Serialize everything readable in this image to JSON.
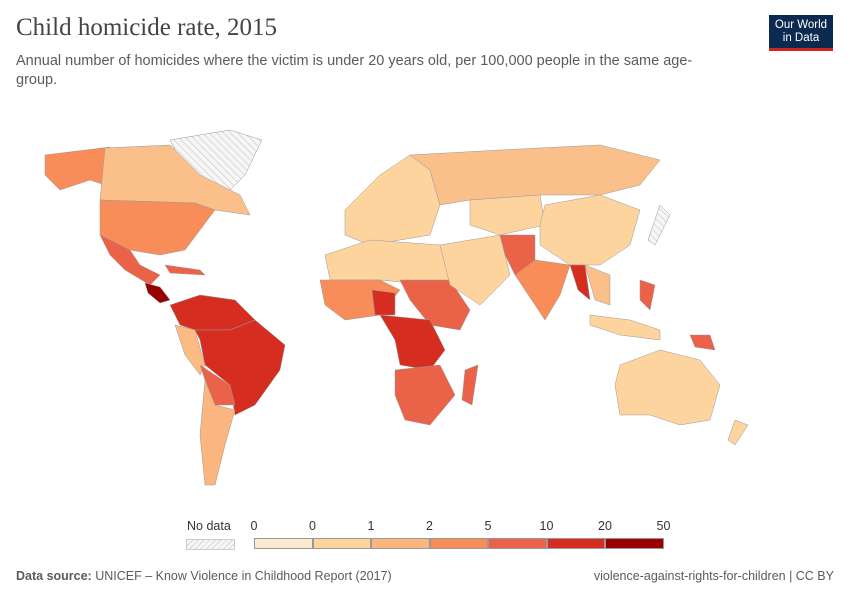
{
  "header": {
    "title": "Child homicide rate, 2015",
    "subtitle": "Annual number of homicides where the victim is under 20 years old, per 100,000 people in the same age-group."
  },
  "logo": {
    "line1": "Our World",
    "line2": "in Data",
    "bg": "#0b2a4f",
    "accent": "#ce261e"
  },
  "chart_data": {
    "type": "map",
    "title": "Child homicide rate, 2015",
    "legend": {
      "no_data_label": "No data",
      "tick_labels": [
        "0",
        "0",
        "1",
        "2",
        "5",
        "10",
        "20",
        "50"
      ],
      "bins": [
        {
          "from": "0",
          "to": "0",
          "color": "#fde9cf"
        },
        {
          "from": "0",
          "to": "1",
          "color": "#fdd49e"
        },
        {
          "from": "1",
          "to": "2",
          "color": "#fbb57f"
        },
        {
          "from": "2",
          "to": "5",
          "color": "#f98d59"
        },
        {
          "from": "5",
          "to": "10",
          "color": "#ea6349"
        },
        {
          "from": "10",
          "to": "20",
          "color": "#d52e20"
        },
        {
          "from": "20",
          "to": "50",
          "color": "#990000"
        }
      ]
    }
  },
  "footer": {
    "source_label": "Data source:",
    "source": "UNICEF – Know Violence in Childhood Report (2017)",
    "slug": "violence-against-rights-for-children | CC BY"
  }
}
